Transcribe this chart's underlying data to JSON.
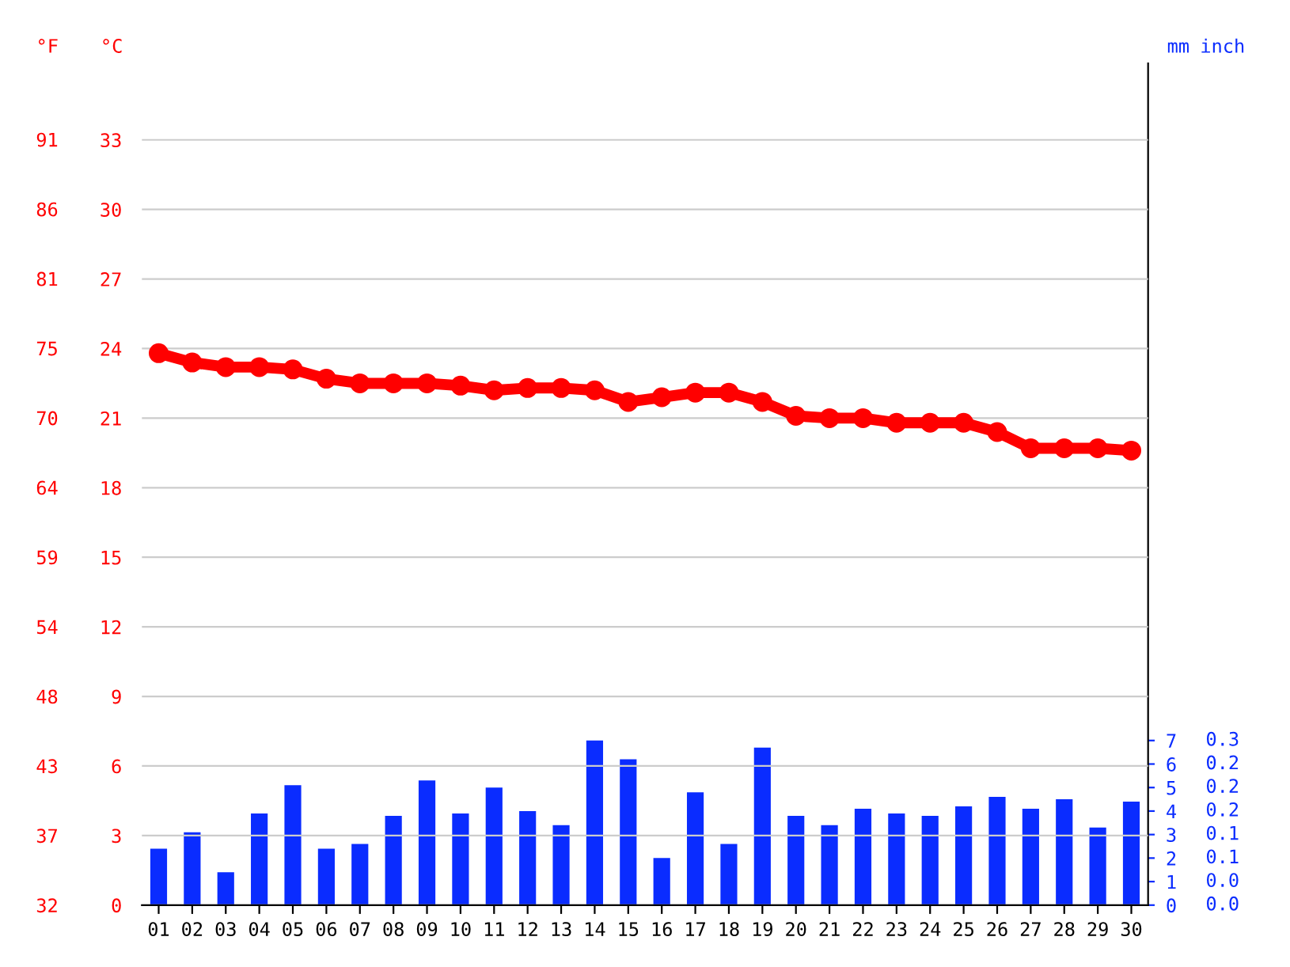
{
  "chart_data": {
    "type": "bar",
    "ylabel": "°C",
    "y2label": "°F",
    "y3label": "mm",
    "categories": [
      "01",
      "02",
      "03",
      "04",
      "05",
      "06",
      "07",
      "08",
      "09",
      "10",
      "11",
      "12",
      "13",
      "14",
      "15",
      "16",
      "17",
      "18",
      "19",
      "20",
      "21",
      "22",
      "23",
      "24",
      "25",
      "26",
      "27",
      "28",
      "29",
      "30"
    ],
    "series": [
      {
        "axis": "y3",
        "color": "#0a2cff",
        "values": [
          2.4,
          3.1,
          1.4,
          3.9,
          5.1,
          2.4,
          2.6,
          3.8,
          5.3,
          3.9,
          5.0,
          4.0,
          3.4,
          7.0,
          6.2,
          2.0,
          4.8,
          2.6,
          6.7,
          3.8,
          3.4,
          4.1,
          3.9,
          3.8,
          4.2,
          4.6,
          4.1,
          4.5,
          3.3,
          4.4
        ]
      },
      {
        "type": "line",
        "axis": "y",
        "color": "#ff0000",
        "marker": "circle",
        "line_style": "solid",
        "values": [
          23.8,
          23.4,
          23.2,
          23.2,
          23.1,
          22.7,
          22.5,
          22.5,
          22.5,
          22.4,
          22.2,
          22.3,
          22.3,
          22.2,
          21.7,
          21.9,
          22.1,
          22.1,
          21.7,
          21.1,
          21.0,
          21.0,
          20.8,
          20.8,
          20.8,
          20.4,
          19.7,
          19.7,
          19.7,
          19.6
        ]
      }
    ],
    "ylim": [
      0,
      36.3
    ],
    "yticks": [
      0,
      3,
      6,
      9,
      12,
      15,
      18,
      21,
      24,
      27,
      30,
      33
    ],
    "y2lim": [
      32,
      97.3
    ],
    "y2ticks": [
      32,
      {
        "value": 37.4,
        "label": "37"
      },
      {
        "value": 42.8,
        "label": "43"
      },
      {
        "value": 48.2,
        "label": "48"
      },
      {
        "value": 53.6,
        "label": "54"
      },
      59,
      {
        "value": 64.4,
        "label": "64"
      },
      {
        "value": 69.8,
        "label": "70"
      },
      {
        "value": 75.2,
        "label": "75"
      },
      {
        "value": 80.6,
        "label": "81"
      },
      86,
      {
        "value": 91.4,
        "label": "91"
      }
    ],
    "y3lim": [
      0,
      35.8
    ],
    "y3ticks": [
      0,
      1,
      2,
      3,
      4,
      5,
      6,
      7
    ],
    "annotations": [
      "inch",
      "0.0",
      "0.0",
      "0.1",
      "0.1",
      "0.2",
      "0.2",
      "0.2",
      "0.3"
    ],
    "grid": "y",
    "legend": false
  }
}
